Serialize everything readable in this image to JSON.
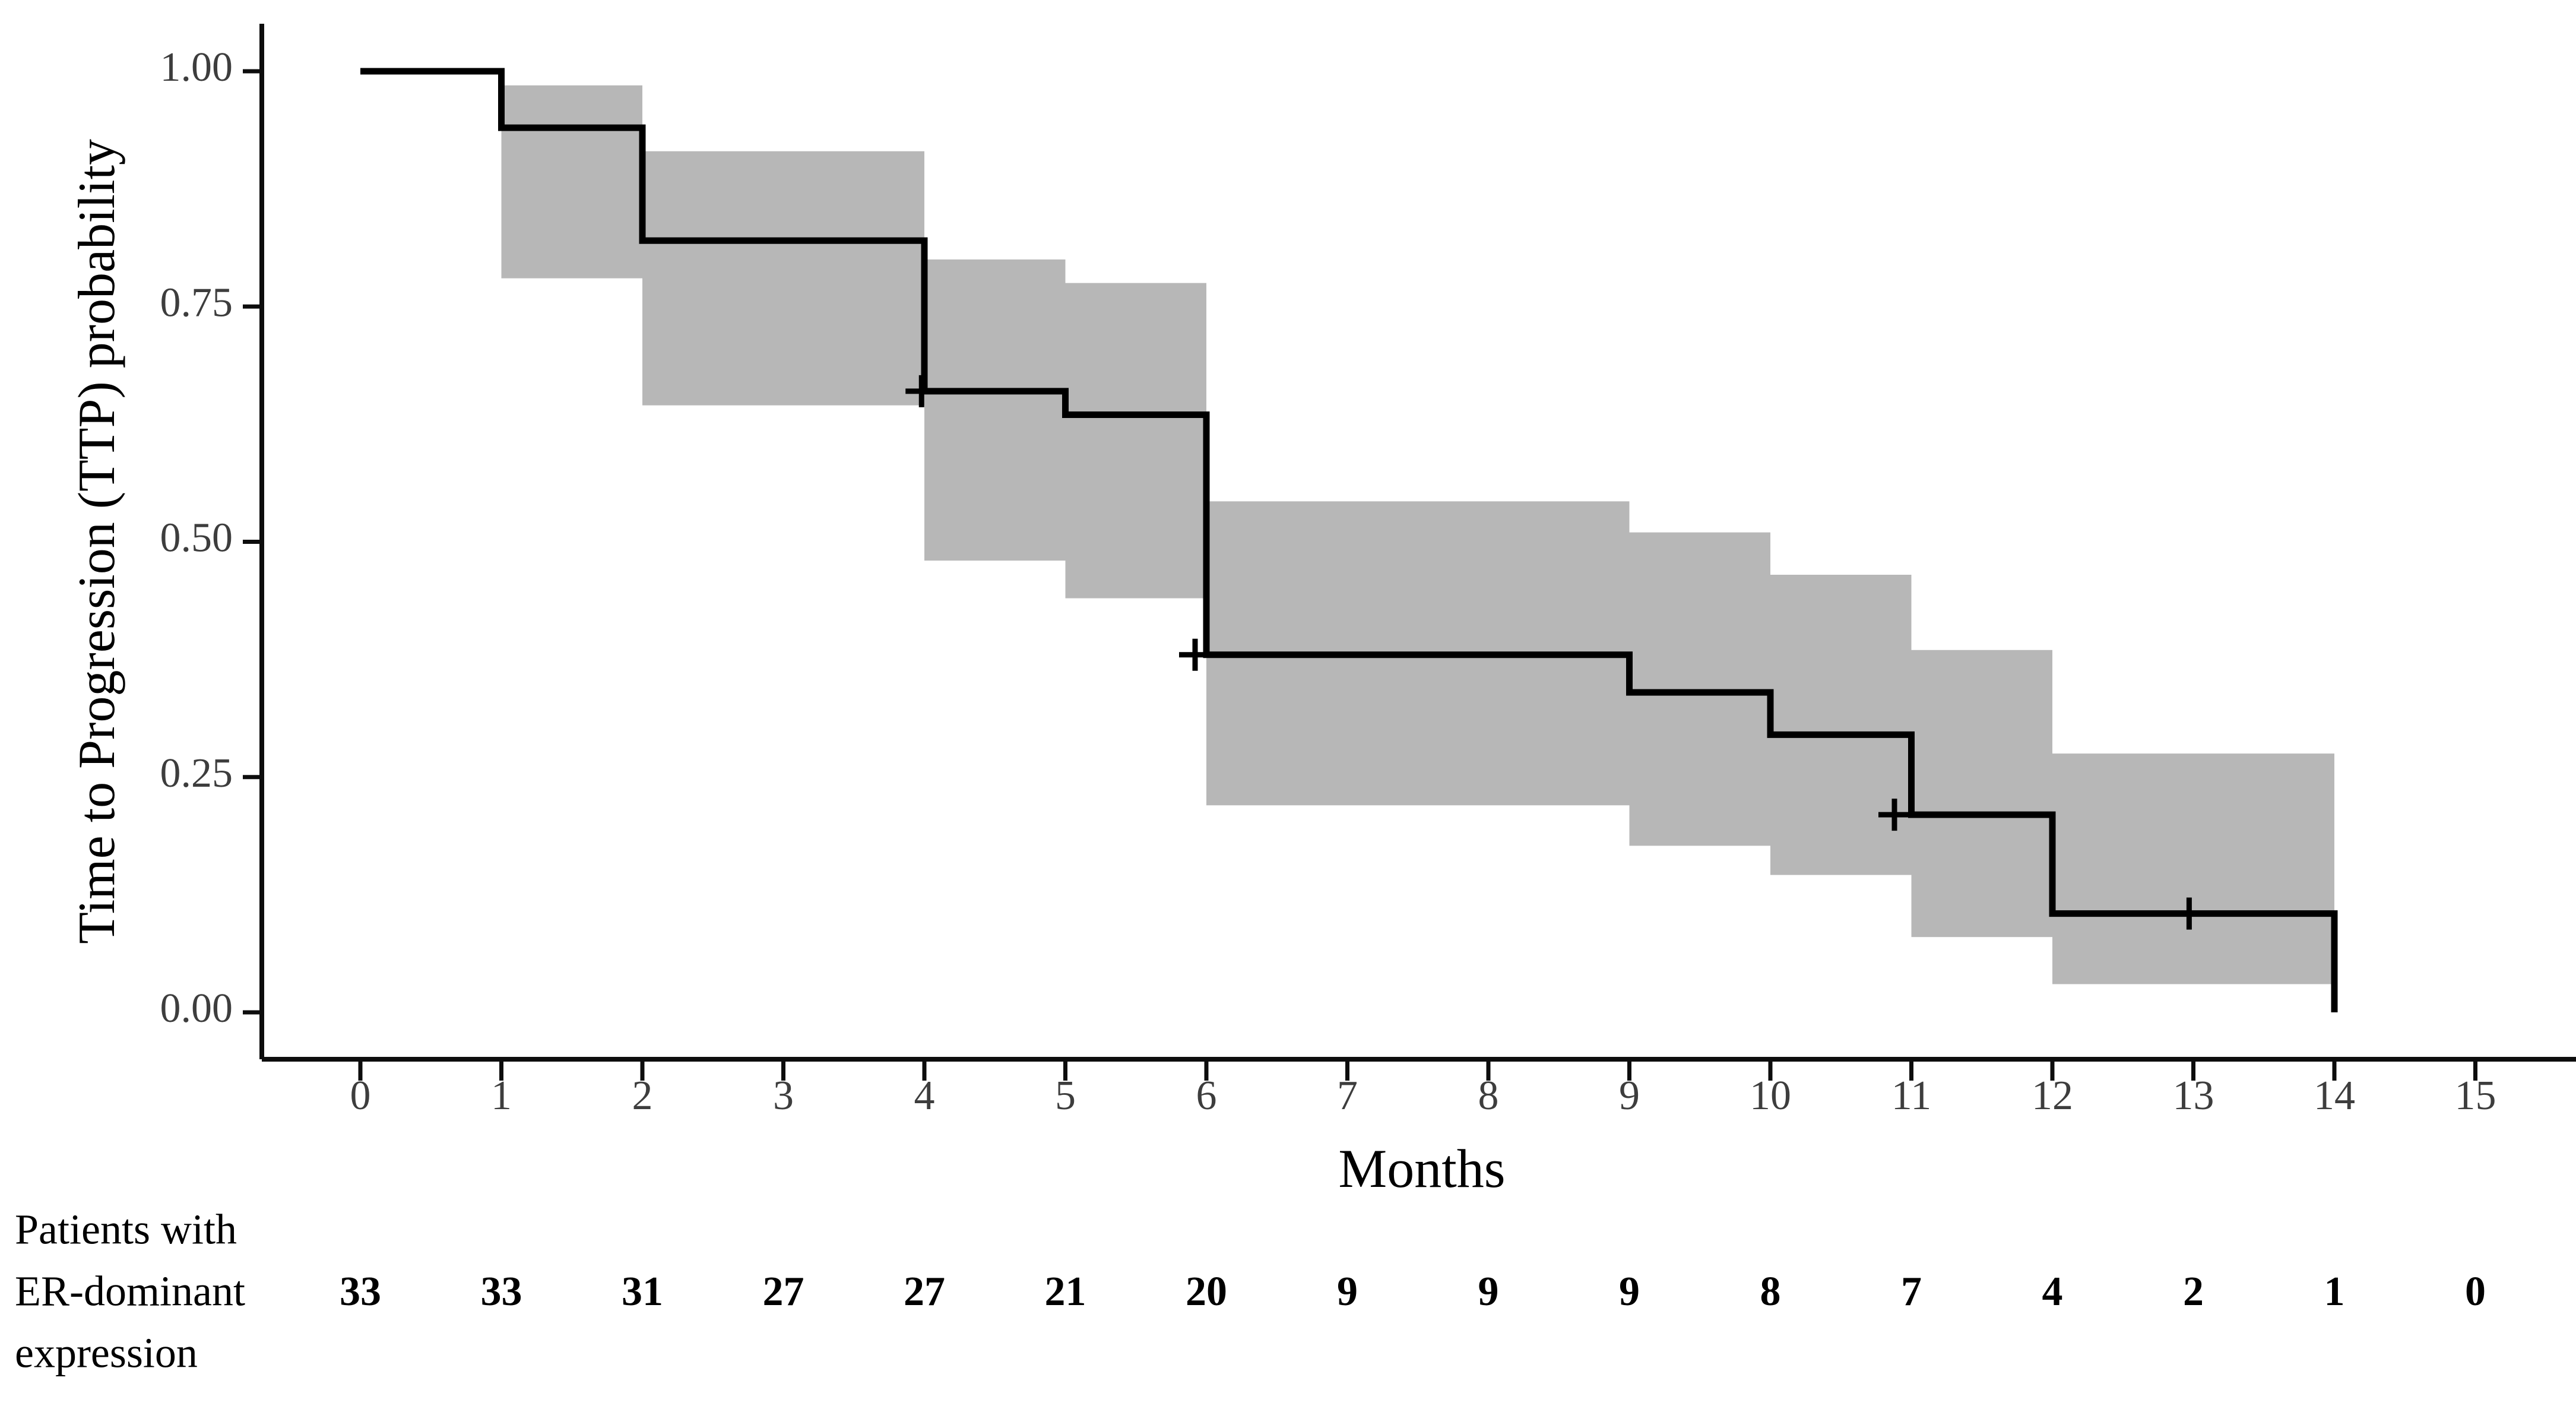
{
  "figure": {
    "background": "#ffffff",
    "description": "Kaplan-Meier time-to-progression curve with 95% confidence band and number-at-risk table"
  },
  "chart_data": {
    "type": "line",
    "subtype": "kaplan-meier-step",
    "title": "",
    "xlabel": "Months",
    "ylabel": "Time to Progression (TTP) probability",
    "xlim": [
      0,
      15.7
    ],
    "ylim": [
      0,
      1
    ],
    "grid": "off",
    "legend": "none",
    "x_ticks": [
      "0",
      "1",
      "2",
      "3",
      "4",
      "5",
      "6",
      "7",
      "8",
      "9",
      "10",
      "11",
      "12",
      "13",
      "14",
      "15"
    ],
    "x_tick_values": [
      0,
      1,
      2,
      3,
      4,
      5,
      6,
      7,
      8,
      9,
      10,
      11,
      12,
      13,
      14,
      15
    ],
    "y_ticks": [
      "0.00",
      "0.25",
      "0.50",
      "0.75",
      "1.00"
    ],
    "y_tick_values": [
      0.0,
      0.25,
      0.5,
      0.75,
      1.0
    ],
    "series": [
      {
        "name": "Patients with ER-dominant expression",
        "step_points": [
          [
            0,
            1.0
          ],
          [
            1,
            0.94
          ],
          [
            2,
            0.82
          ],
          [
            4,
            0.66
          ],
          [
            5,
            0.635
          ],
          [
            6,
            0.38
          ],
          [
            9,
            0.34
          ],
          [
            10,
            0.295
          ],
          [
            11,
            0.21
          ],
          [
            12,
            0.105
          ],
          [
            14,
            0.0
          ]
        ]
      }
    ],
    "confidence_band": [
      {
        "t0": 1,
        "t1": 2,
        "lower": 0.78,
        "upper": 0.985
      },
      {
        "t0": 2,
        "t1": 4,
        "lower": 0.645,
        "upper": 0.915
      },
      {
        "t0": 4,
        "t1": 5,
        "lower": 0.48,
        "upper": 0.8
      },
      {
        "t0": 5,
        "t1": 6,
        "lower": 0.44,
        "upper": 0.775
      },
      {
        "t0": 6,
        "t1": 9,
        "lower": 0.22,
        "upper": 0.543
      },
      {
        "t0": 9,
        "t1": 10,
        "lower": 0.177,
        "upper": 0.51
      },
      {
        "t0": 10,
        "t1": 11,
        "lower": 0.146,
        "upper": 0.465
      },
      {
        "t0": 11,
        "t1": 12,
        "lower": 0.08,
        "upper": 0.385
      },
      {
        "t0": 12,
        "t1": 14,
        "lower": 0.03,
        "upper": 0.275
      }
    ],
    "censor_marks": [
      {
        "t": 3.98,
        "p": 0.66
      },
      {
        "t": 5.92,
        "p": 0.38
      },
      {
        "t": 10.88,
        "p": 0.21
      },
      {
        "t": 12.97,
        "p": 0.105
      }
    ],
    "colors": {
      "curve": "#000000",
      "band": "#b7b7b7",
      "axis": "#0d0d0d",
      "tick_label": "#3d3d3d",
      "text": "#000000"
    }
  },
  "risk_table": {
    "label_lines": [
      "Patients with",
      "ER-dominant",
      "expression"
    ],
    "times": [
      0,
      1,
      2,
      3,
      4,
      5,
      6,
      7,
      8,
      9,
      10,
      11,
      12,
      13,
      14,
      15
    ],
    "counts": [
      "33",
      "33",
      "31",
      "27",
      "27",
      "21",
      "20",
      "9",
      "9",
      "9",
      "8",
      "7",
      "4",
      "2",
      "1",
      "0"
    ]
  }
}
